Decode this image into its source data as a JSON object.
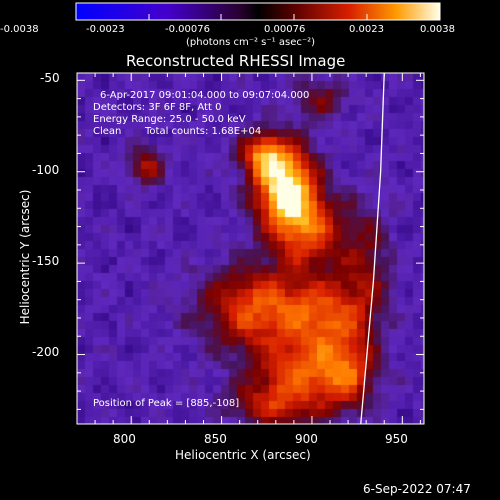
{
  "chart_data": {
    "type": "heatmap",
    "title": "Reconstructed RHESSI Image",
    "xlabel": "Heliocentric X (arcsec)",
    "ylabel": "Heliocentric Y (arcsec)",
    "xlim": [
      770,
      962
    ],
    "ylim": [
      -238,
      -46
    ],
    "xticks": [
      800,
      850,
      900,
      950
    ],
    "yticks": [
      -50,
      -100,
      -150,
      -200
    ],
    "colorbar": {
      "min": -0.0038,
      "max": 0.0038,
      "ticks": [
        "-0.0038",
        "-0.0023",
        "-0.00076",
        "0.00076",
        "0.0023",
        "0.0038"
      ],
      "units_text": "(photons cm⁻² s⁻¹ asec⁻²)"
    },
    "annotations": {
      "time": "6-Apr-2017 09:01:04.000 to 09:07:04.000",
      "detectors": "Detectors: 3F 6F 8F, Att 0",
      "energy": "Energy Range: 25.0 - 50.0 keV",
      "method": "Clean",
      "counts": "Total counts: 1.68E+04",
      "peak": "Position of Peak = [885,-108]"
    },
    "peak_position": [
      885,
      -108
    ],
    "components": [
      {
        "x": 885,
        "y": -108,
        "sx": 12,
        "sy": 16,
        "amp": 1.0
      },
      {
        "x": 872,
        "y": -90,
        "sx": 9,
        "sy": 8,
        "amp": 0.55
      },
      {
        "x": 898,
        "y": -132,
        "sx": 14,
        "sy": 14,
        "amp": 0.55
      },
      {
        "x": 870,
        "y": -175,
        "sx": 22,
        "sy": 16,
        "amp": 0.62
      },
      {
        "x": 910,
        "y": -180,
        "sx": 16,
        "sy": 16,
        "amp": 0.5
      },
      {
        "x": 895,
        "y": -210,
        "sx": 20,
        "sy": 12,
        "amp": 0.5
      },
      {
        "x": 880,
        "y": -228,
        "sx": 18,
        "sy": 9,
        "amp": 0.42
      },
      {
        "x": 920,
        "y": -212,
        "sx": 10,
        "sy": 14,
        "amp": 0.4
      },
      {
        "x": 808,
        "y": -97,
        "sx": 7,
        "sy": 7,
        "amp": 0.42
      },
      {
        "x": 930,
        "y": -150,
        "sx": 10,
        "sy": 24,
        "amp": 0.28
      },
      {
        "x": 905,
        "y": -60,
        "sx": 10,
        "sy": 8,
        "amp": 0.3
      }
    ],
    "limb_curve": [
      [
        940,
        -46
      ],
      [
        938,
        -100
      ],
      [
        934,
        -160
      ],
      [
        927,
        -238
      ]
    ]
  },
  "timestamp": "6-Sep-2022 07:47"
}
